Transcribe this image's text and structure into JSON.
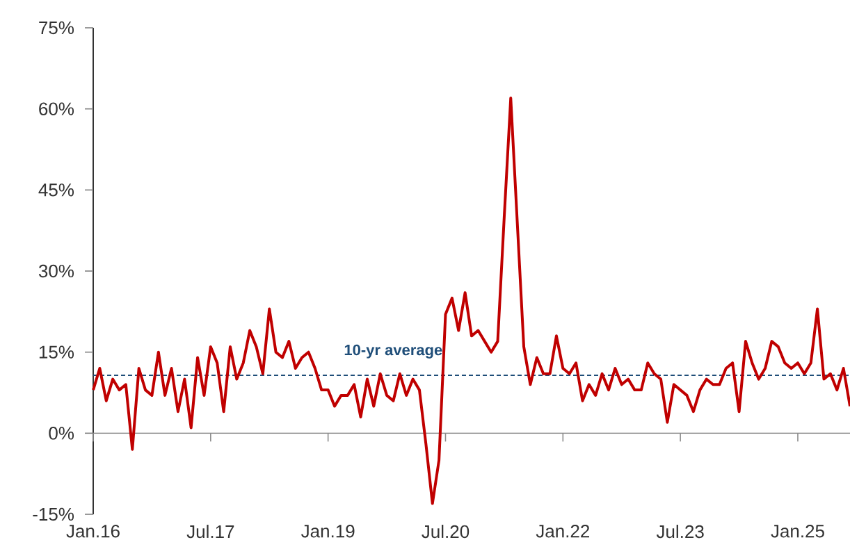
{
  "chart_data": {
    "type": "line",
    "x": [
      "2016-01",
      "2016-02",
      "2016-03",
      "2016-04",
      "2016-05",
      "2016-06",
      "2016-07",
      "2016-08",
      "2016-09",
      "2016-10",
      "2016-11",
      "2016-12",
      "2017-01",
      "2017-02",
      "2017-03",
      "2017-04",
      "2017-05",
      "2017-06",
      "2017-07",
      "2017-08",
      "2017-09",
      "2017-10",
      "2017-11",
      "2017-12",
      "2018-01",
      "2018-02",
      "2018-03",
      "2018-04",
      "2018-05",
      "2018-06",
      "2018-07",
      "2018-08",
      "2018-09",
      "2018-10",
      "2018-11",
      "2018-12",
      "2019-01",
      "2019-02",
      "2019-03",
      "2019-04",
      "2019-05",
      "2019-06",
      "2019-07",
      "2019-08",
      "2019-09",
      "2019-10",
      "2019-11",
      "2019-12",
      "2020-01",
      "2020-02",
      "2020-03",
      "2020-04",
      "2020-05",
      "2020-06",
      "2020-07",
      "2020-08",
      "2020-09",
      "2020-10",
      "2020-11",
      "2020-12",
      "2021-01",
      "2021-02",
      "2021-03",
      "2021-04",
      "2021-05",
      "2021-06",
      "2021-07",
      "2021-08",
      "2021-09",
      "2021-10",
      "2021-11",
      "2021-12",
      "2022-01",
      "2022-02",
      "2022-03",
      "2022-04",
      "2022-05",
      "2022-06",
      "2022-07",
      "2022-08",
      "2022-09",
      "2022-10",
      "2022-11",
      "2022-12",
      "2023-01",
      "2023-02",
      "2023-03",
      "2023-04",
      "2023-05",
      "2023-06",
      "2023-07",
      "2023-08",
      "2023-09",
      "2023-10",
      "2023-11",
      "2023-12",
      "2024-01",
      "2024-02",
      "2024-03",
      "2024-04",
      "2024-05",
      "2024-06",
      "2024-07",
      "2024-08",
      "2024-09",
      "2024-10",
      "2024-11",
      "2024-12",
      "2025-01",
      "2025-02",
      "2025-03",
      "2025-04",
      "2025-05",
      "2025-06",
      "2025-07",
      "2025-08",
      "2025-09"
    ],
    "series": [
      {
        "color": "#c00000",
        "values": [
          8,
          12,
          6,
          10,
          8,
          9,
          -3,
          12,
          8,
          7,
          15,
          7,
          12,
          4,
          10,
          1,
          14,
          7,
          16,
          13,
          4,
          16,
          10,
          13,
          19,
          16,
          11,
          23,
          15,
          14,
          17,
          12,
          14,
          15,
          12,
          8,
          8,
          5,
          7,
          7,
          9,
          3,
          10,
          5,
          11,
          7,
          6,
          11,
          7,
          10,
          8,
          -2,
          -13,
          -5,
          22,
          25,
          19,
          26,
          18,
          19,
          17,
          15,
          17,
          40,
          62,
          39,
          16,
          9,
          14,
          11,
          11,
          18,
          12,
          11,
          13,
          6,
          9,
          7,
          11,
          8,
          12,
          9,
          10,
          8,
          8,
          13,
          11,
          10,
          2,
          9,
          8,
          7,
          4,
          8,
          10,
          9,
          9,
          12,
          13,
          4,
          17,
          13,
          10,
          12,
          17,
          16,
          13,
          12,
          13,
          11,
          13,
          23,
          10,
          11,
          8,
          12,
          5
        ]
      }
    ],
    "xlim": [
      "2016-01",
      "2025-09"
    ],
    "xticks": [
      {
        "value": "2016-01",
        "label": "Jan.16"
      },
      {
        "value": "2017-07",
        "label": "Jul.17"
      },
      {
        "value": "2019-01",
        "label": "Jan.19"
      },
      {
        "value": "2020-07",
        "label": "Jul.20"
      },
      {
        "value": "2022-01",
        "label": "Jan.22"
      },
      {
        "value": "2023-07",
        "label": "Jul.23"
      },
      {
        "value": "2025-01",
        "label": "Jan.25"
      }
    ],
    "ylim": [
      -15,
      75
    ],
    "yticks": [
      {
        "value": -15,
        "label": "-15%"
      },
      {
        "value": 0,
        "label": "0%"
      },
      {
        "value": 15,
        "label": "15%"
      },
      {
        "value": 30,
        "label": "30%"
      },
      {
        "value": 45,
        "label": "45%"
      },
      {
        "value": 60,
        "label": "60%"
      },
      {
        "value": 75,
        "label": "75%"
      }
    ],
    "ref_lines": [
      {
        "axis": "y",
        "value": 10.7,
        "label": "10-yr average",
        "color": "#1f4e79",
        "line_style": "dashed"
      }
    ],
    "marker": "none",
    "line_style": "solid"
  }
}
